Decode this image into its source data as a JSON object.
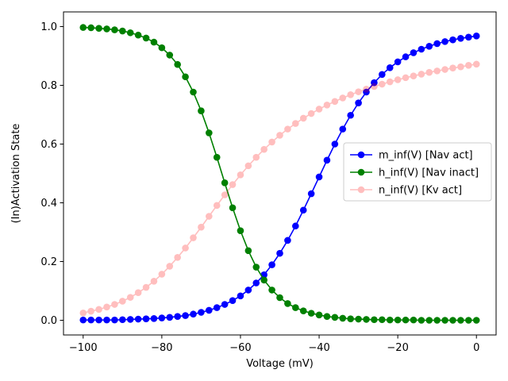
{
  "chart_data": {
    "type": "line",
    "xlabel": "Voltage (mV)",
    "ylabel": "(In)Activation State",
    "xlim": [
      -105,
      5
    ],
    "ylim": [
      -0.05,
      1.05
    ],
    "x_ticks": [
      -100,
      -80,
      -60,
      -40,
      -20,
      0
    ],
    "x_tick_labels": [
      "−100",
      "−80",
      "−60",
      "−40",
      "−20",
      "0"
    ],
    "y_ticks": [
      0.0,
      0.2,
      0.4,
      0.6,
      0.8,
      1.0
    ],
    "y_tick_labels": [
      "0.0",
      "0.2",
      "0.4",
      "0.6",
      "0.8",
      "1.0"
    ],
    "grid": false,
    "legend_position": "center-right",
    "x": [
      -100,
      -98,
      -96,
      -94,
      -92,
      -90,
      -88,
      -86,
      -84,
      -82,
      -80,
      -78,
      -76,
      -74,
      -72,
      -70,
      -68,
      -66,
      -64,
      -62,
      -60,
      -58,
      -56,
      -54,
      -52,
      -50,
      -48,
      -46,
      -44,
      -42,
      -40,
      -38,
      -36,
      -34,
      -32,
      -30,
      -28,
      -26,
      -24,
      -22,
      -20,
      -18,
      -16,
      -14,
      -12,
      -10,
      -8,
      -6,
      -4,
      -2,
      0
    ],
    "series": [
      {
        "name": "m_inf(V) [Nav act]",
        "color": "#0000ff",
        "alpha": 1.0,
        "values": [
          0.001,
          0.001,
          0.001,
          0.001,
          0.001,
          0.002,
          0.003,
          0.004,
          0.005,
          0.006,
          0.008,
          0.01,
          0.013,
          0.016,
          0.021,
          0.027,
          0.034,
          0.043,
          0.054,
          0.067,
          0.083,
          0.103,
          0.127,
          0.155,
          0.189,
          0.228,
          0.272,
          0.321,
          0.375,
          0.431,
          0.488,
          0.545,
          0.6,
          0.651,
          0.698,
          0.74,
          0.777,
          0.809,
          0.837,
          0.86,
          0.88,
          0.897,
          0.911,
          0.923,
          0.933,
          0.942,
          0.949,
          0.955,
          0.96,
          0.964,
          0.968
        ]
      },
      {
        "name": "h_inf(V) [Nav inact]",
        "color": "#008000",
        "alpha": 1.0,
        "values": [
          0.997,
          0.996,
          0.994,
          0.992,
          0.989,
          0.985,
          0.979,
          0.971,
          0.961,
          0.947,
          0.928,
          0.903,
          0.871,
          0.829,
          0.777,
          0.713,
          0.638,
          0.555,
          0.468,
          0.383,
          0.305,
          0.237,
          0.181,
          0.137,
          0.103,
          0.077,
          0.057,
          0.043,
          0.032,
          0.024,
          0.018,
          0.013,
          0.01,
          0.007,
          0.005,
          0.004,
          0.003,
          0.002,
          0.002,
          0.001,
          0.001,
          0.001,
          0.001,
          0.0,
          0.0,
          0.0,
          0.0,
          0.0,
          0.0,
          0.0,
          0.0
        ]
      },
      {
        "name": "n_inf(V) [Kv act]",
        "color": "#ff0000",
        "alpha": 0.25,
        "values": [
          0.025,
          0.031,
          0.037,
          0.045,
          0.054,
          0.065,
          0.078,
          0.094,
          0.112,
          0.133,
          0.157,
          0.184,
          0.214,
          0.246,
          0.281,
          0.317,
          0.354,
          0.391,
          0.427,
          0.462,
          0.495,
          0.526,
          0.555,
          0.582,
          0.607,
          0.63,
          0.651,
          0.67,
          0.688,
          0.704,
          0.719,
          0.733,
          0.745,
          0.757,
          0.768,
          0.778,
          0.787,
          0.796,
          0.804,
          0.812,
          0.819,
          0.826,
          0.832,
          0.838,
          0.844,
          0.849,
          0.854,
          0.859,
          0.863,
          0.868,
          0.872
        ]
      }
    ]
  }
}
